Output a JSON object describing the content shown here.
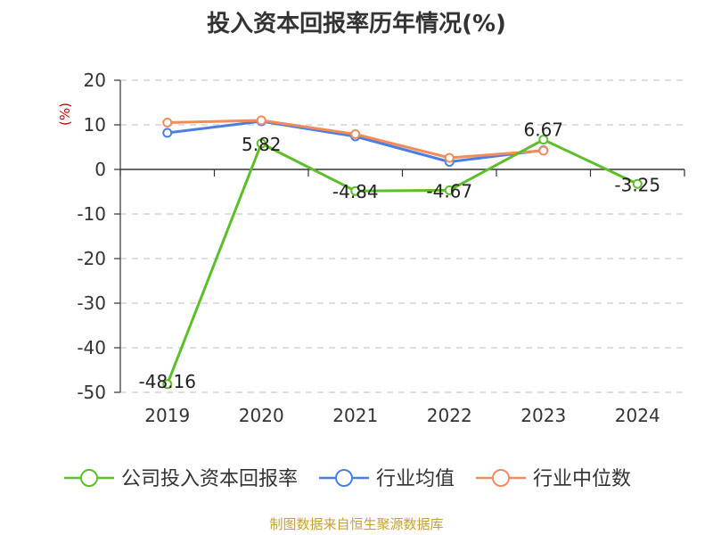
{
  "title": "投入资本回报率历年情况(%)",
  "source": "制图数据来自恒生聚源数据库",
  "colors": {
    "company": "#5cbf2a",
    "industry_avg": "#4a7fe0",
    "industry_median": "#f28c5a",
    "axis": "#333333",
    "grid": "#cccccc",
    "unit": "#cc0000"
  },
  "chart_data": {
    "type": "line",
    "ylabel": "(%)",
    "ylim": [
      -50,
      20
    ],
    "yticks": [
      20,
      10,
      0,
      -10,
      -20,
      -30,
      -40,
      -50
    ],
    "grid": true,
    "legend_position": "bottom",
    "categories": [
      "2019",
      "2020",
      "2021",
      "2022",
      "2023",
      "2024"
    ],
    "series": [
      {
        "name": "公司投入资本回报率",
        "color": "#5cbf2a",
        "values": [
          -48.16,
          5.82,
          -4.84,
          -4.67,
          6.67,
          -3.25
        ],
        "labels": [
          "-48.16",
          "5.82",
          "-4.84",
          "-4.67",
          "6.67",
          "-3.25"
        ]
      },
      {
        "name": "行业均值",
        "color": "#4a7fe0",
        "values": [
          8.2,
          10.8,
          7.4,
          1.7,
          4.3,
          null
        ]
      },
      {
        "name": "行业中位数",
        "color": "#f28c5a",
        "values": [
          10.5,
          11.0,
          7.9,
          2.6,
          4.2,
          null
        ]
      }
    ]
  }
}
